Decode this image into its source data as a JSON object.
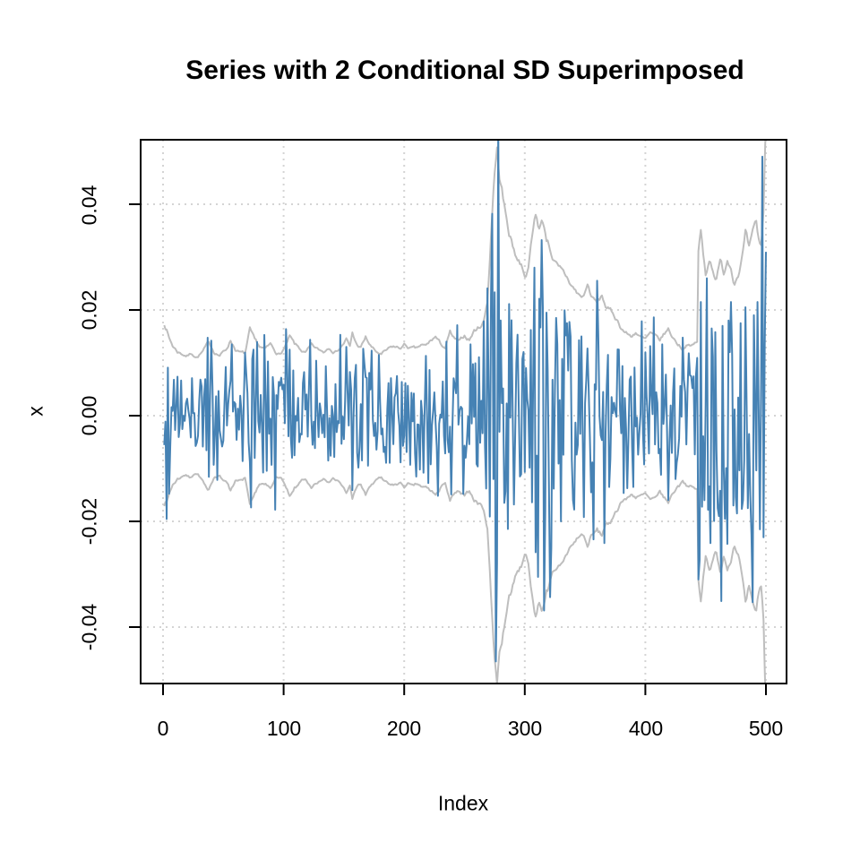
{
  "title": "Series with 2 Conditional SD Superimposed",
  "chart_data": {
    "type": "line",
    "title": "Series with 2 Conditional SD Superimposed",
    "xlabel": "Index",
    "ylabel": "x",
    "x_range": [
      1,
      500
    ],
    "ylim": [
      -0.052,
      0.052
    ],
    "x_ticks": [
      0,
      100,
      200,
      300,
      400,
      500
    ],
    "x_tick_labels": [
      "0",
      "100",
      "200",
      "300",
      "400",
      "500"
    ],
    "y_ticks": [
      0.04,
      0.02,
      0.0,
      -0.02,
      -0.04
    ],
    "y_tick_labels": [
      "0.04",
      "0.02",
      "0.00",
      "-0.02",
      "-0.04"
    ],
    "grid": "dotted both axes at ticks",
    "legend": "none",
    "series": [
      {
        "name": "x",
        "role": "returns series",
        "color": "#4682B4",
        "points": 500
      },
      {
        "name": "+2 conditional SD",
        "role": "upper envelope",
        "color": "#BEBEBE"
      },
      {
        "name": "-2 conditional SD",
        "role": "lower envelope (mirror of upper)",
        "color": "#BEBEBE"
      }
    ],
    "sd2_envelope_control_points": [
      [
        1,
        0.0175
      ],
      [
        3,
        0.0165
      ],
      [
        5,
        0.0148
      ],
      [
        8,
        0.0133
      ],
      [
        12,
        0.0122
      ],
      [
        16,
        0.0118
      ],
      [
        20,
        0.0115
      ],
      [
        24,
        0.0119
      ],
      [
        28,
        0.0113
      ],
      [
        33,
        0.0122
      ],
      [
        38,
        0.0136
      ],
      [
        42,
        0.0122
      ],
      [
        47,
        0.0116
      ],
      [
        52,
        0.0124
      ],
      [
        56,
        0.0144
      ],
      [
        60,
        0.0128
      ],
      [
        64,
        0.012
      ],
      [
        68,
        0.0116
      ],
      [
        72,
        0.0158
      ],
      [
        76,
        0.0136
      ],
      [
        80,
        0.0126
      ],
      [
        85,
        0.0122
      ],
      [
        89,
        0.013
      ],
      [
        93,
        0.012
      ],
      [
        97,
        0.0115
      ],
      [
        102,
        0.0132
      ],
      [
        105,
        0.0146
      ],
      [
        109,
        0.0131
      ],
      [
        113,
        0.0124
      ],
      [
        118,
        0.0116
      ],
      [
        123,
        0.0128
      ],
      [
        128,
        0.0121
      ],
      [
        133,
        0.0118
      ],
      [
        138,
        0.0131
      ],
      [
        143,
        0.0125
      ],
      [
        148,
        0.0135
      ],
      [
        152,
        0.0147
      ],
      [
        155,
        0.0129
      ],
      [
        157,
        0.0155
      ],
      [
        160,
        0.0136
      ],
      [
        164,
        0.0128
      ],
      [
        168,
        0.0146
      ],
      [
        172,
        0.0131
      ],
      [
        176,
        0.012
      ],
      [
        181,
        0.0114
      ],
      [
        186,
        0.0121
      ],
      [
        191,
        0.0127
      ],
      [
        196,
        0.0125
      ],
      [
        200,
        0.0132
      ],
      [
        205,
        0.0127
      ],
      [
        210,
        0.0123
      ],
      [
        214,
        0.013
      ],
      [
        218,
        0.0128
      ],
      [
        222,
        0.0138
      ],
      [
        226,
        0.0147
      ],
      [
        230,
        0.0133
      ],
      [
        234,
        0.0128
      ],
      [
        238,
        0.0155
      ],
      [
        242,
        0.014
      ],
      [
        246,
        0.0135
      ],
      [
        250,
        0.0147
      ],
      [
        254,
        0.0143
      ],
      [
        258,
        0.016
      ],
      [
        262,
        0.0167
      ],
      [
        266,
        0.018
      ],
      [
        269,
        0.022
      ],
      [
        271,
        0.03
      ],
      [
        273,
        0.0395
      ],
      [
        275,
        0.047
      ],
      [
        277,
        0.0505
      ],
      [
        279,
        0.046
      ],
      [
        281,
        0.043
      ],
      [
        284,
        0.038
      ],
      [
        287,
        0.035
      ],
      [
        290,
        0.0322
      ],
      [
        294,
        0.03
      ],
      [
        298,
        0.0285
      ],
      [
        301,
        0.0268
      ],
      [
        304,
        0.031
      ],
      [
        306,
        0.034
      ],
      [
        309,
        0.0383
      ],
      [
        312,
        0.036
      ],
      [
        315,
        0.0368
      ],
      [
        318,
        0.034
      ],
      [
        321,
        0.0322
      ],
      [
        324,
        0.03
      ],
      [
        328,
        0.0275
      ],
      [
        332,
        0.0262
      ],
      [
        336,
        0.0252
      ],
      [
        340,
        0.024
      ],
      [
        344,
        0.0228
      ],
      [
        348,
        0.0222
      ],
      [
        352,
        0.0246
      ],
      [
        356,
        0.0222
      ],
      [
        360,
        0.021
      ],
      [
        364,
        0.0224
      ],
      [
        368,
        0.0202
      ],
      [
        372,
        0.0193
      ],
      [
        376,
        0.0183
      ],
      [
        380,
        0.0168
      ],
      [
        384,
        0.0158
      ],
      [
        388,
        0.015
      ],
      [
        392,
        0.016
      ],
      [
        396,
        0.0148
      ],
      [
        400,
        0.0142
      ],
      [
        404,
        0.0152
      ],
      [
        408,
        0.0144
      ],
      [
        412,
        0.0138
      ],
      [
        416,
        0.0152
      ],
      [
        419,
        0.016
      ],
      [
        423,
        0.0146
      ],
      [
        427,
        0.0136
      ],
      [
        431,
        0.0128
      ],
      [
        435,
        0.014
      ],
      [
        438,
        0.0132
      ],
      [
        441,
        0.0136
      ],
      [
        443,
        0.014
      ],
      [
        444,
        0.031
      ],
      [
        446,
        0.0346
      ],
      [
        448,
        0.03
      ],
      [
        450,
        0.0264
      ],
      [
        453,
        0.03
      ],
      [
        456,
        0.0282
      ],
      [
        459,
        0.0265
      ],
      [
        462,
        0.0292
      ],
      [
        465,
        0.027
      ],
      [
        468,
        0.03
      ],
      [
        471,
        0.0288
      ],
      [
        474,
        0.0262
      ],
      [
        477,
        0.0282
      ],
      [
        480,
        0.0306
      ],
      [
        483,
        0.0346
      ],
      [
        486,
        0.031
      ],
      [
        489,
        0.033
      ],
      [
        492,
        0.035
      ],
      [
        494,
        0.032
      ],
      [
        496,
        0.031
      ],
      [
        498,
        0.038
      ],
      [
        500,
        0.056
      ]
    ],
    "series_notable_points": [
      [
        40,
        0.0142
      ],
      [
        57,
        0.0135
      ],
      [
        75,
        0.0125
      ],
      [
        93,
        -0.0178
      ],
      [
        105,
        0.0125
      ],
      [
        152,
        0.013
      ],
      [
        235,
        0.014
      ],
      [
        255,
        0.0135
      ],
      [
        272,
        0.023
      ],
      [
        274,
        -0.012
      ],
      [
        276,
        -0.0465
      ],
      [
        280,
        0.018
      ],
      [
        283,
        -0.0165
      ],
      [
        305,
        0.0162
      ],
      [
        308,
        0.028
      ],
      [
        311,
        -0.0305
      ],
      [
        315,
        0.0205
      ],
      [
        318,
        0.0195
      ],
      [
        322,
        -0.025
      ],
      [
        326,
        0.0185
      ],
      [
        330,
        -0.02
      ],
      [
        335,
        0.0175
      ],
      [
        340,
        -0.016
      ],
      [
        347,
        0.015
      ],
      [
        355,
        -0.0145
      ],
      [
        361,
        0.0148
      ],
      [
        370,
        -0.0135
      ],
      [
        378,
        0.0125
      ],
      [
        390,
        -0.0135
      ],
      [
        400,
        0.012
      ],
      [
        414,
        0.0135
      ],
      [
        425,
        -0.012
      ],
      [
        436,
        0.0118
      ],
      [
        444,
        -0.031
      ],
      [
        446,
        0.0215
      ],
      [
        449,
        -0.016
      ],
      [
        452,
        -0.0178
      ],
      [
        455,
        0.0165
      ],
      [
        458,
        0.0158
      ],
      [
        461,
        -0.019
      ],
      [
        464,
        0.017
      ],
      [
        466,
        -0.0195
      ],
      [
        469,
        0.018
      ],
      [
        471,
        0.0215
      ],
      [
        473,
        -0.017
      ],
      [
        476,
        -0.0185
      ],
      [
        479,
        0.0175
      ],
      [
        481,
        -0.016
      ],
      [
        483,
        0.0205
      ],
      [
        485,
        -0.0175
      ],
      [
        488,
        -0.0225
      ],
      [
        490,
        0.019
      ],
      [
        493,
        0.0215
      ],
      [
        495,
        -0.0215
      ],
      [
        497,
        0.049
      ],
      [
        498,
        -0.023
      ],
      [
        500,
        0.031
      ]
    ],
    "render_seed": 7,
    "colors": {
      "series": "#4682B4",
      "envelope": "#BEBEBE",
      "grid": "#D4D4D4",
      "frame": "#000000",
      "text": "#000000",
      "background": "#FFFFFF"
    }
  }
}
